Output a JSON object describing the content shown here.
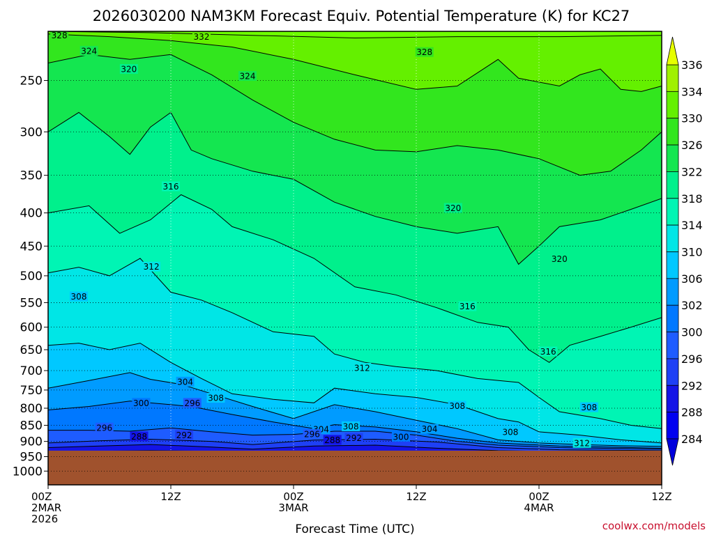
{
  "chart_data": {
    "type": "heatmap",
    "title": "2026030200 NAM3KM Forecast Equiv. Potential Temperature (K) for KC27",
    "xlabel": "Forecast Time (UTC)",
    "ylabel": "",
    "credit": "coolwx.com/models",
    "y_axis": {
      "log": true,
      "range": [
        210,
        1050
      ],
      "ticks": [
        250,
        300,
        350,
        400,
        450,
        500,
        550,
        600,
        650,
        700,
        750,
        800,
        850,
        900,
        950,
        1000
      ]
    },
    "x_axis": {
      "range_hours": [
        0,
        60
      ],
      "ticks": [
        {
          "hour": 0,
          "lines": [
            "00Z",
            "2MAR",
            "2026"
          ]
        },
        {
          "hour": 12,
          "lines": [
            "12Z"
          ]
        },
        {
          "hour": 24,
          "lines": [
            "00Z",
            "3MAR"
          ]
        },
        {
          "hour": 36,
          "lines": [
            "12Z"
          ]
        },
        {
          "hour": 48,
          "lines": [
            "00Z",
            "4MAR"
          ]
        },
        {
          "hour": 60,
          "lines": [
            "12Z"
          ]
        }
      ]
    },
    "colorbar": {
      "levels": [
        284,
        288,
        292,
        296,
        300,
        302,
        306,
        310,
        314,
        318,
        322,
        326,
        330,
        334,
        336
      ],
      "colors": [
        "#0000f0",
        "#1414e6",
        "#1e40f5",
        "#1e5cff",
        "#0078ff",
        "#009bff",
        "#00c8ff",
        "#00e6e6",
        "#00f5b4",
        "#00f08c",
        "#14e650",
        "#32e61e",
        "#64f000",
        "#a0f000",
        "#d2f500"
      ],
      "end_colors": {
        "low": "#0000dc",
        "high": "#e6ff00"
      }
    },
    "ground": {
      "surface_pressure_hpa": 930,
      "color": "#a0522d"
    },
    "series": [
      {
        "level": 284,
        "points": [
          [
            0,
            934
          ],
          [
            10,
            930
          ],
          [
            16,
            932
          ],
          [
            20,
            934
          ],
          [
            26,
            934
          ],
          [
            32,
            934
          ],
          [
            38,
            934
          ],
          [
            44,
            935
          ],
          [
            50,
            936
          ],
          [
            60,
            936
          ]
        ]
      },
      {
        "level": 288,
        "points": [
          [
            0,
            920
          ],
          [
            5,
            915
          ],
          [
            10,
            910
          ],
          [
            16,
            918
          ],
          [
            20,
            925
          ],
          [
            26,
            915
          ],
          [
            32,
            912
          ],
          [
            38,
            922
          ],
          [
            44,
            930
          ],
          [
            50,
            933
          ],
          [
            60,
            934
          ]
        ]
      },
      {
        "level": 292,
        "points": [
          [
            0,
            905
          ],
          [
            5,
            898
          ],
          [
            10,
            893
          ],
          [
            16,
            900
          ],
          [
            20,
            910
          ],
          [
            26,
            896
          ],
          [
            32,
            893
          ],
          [
            38,
            902
          ],
          [
            44,
            920
          ],
          [
            50,
            927
          ],
          [
            60,
            930
          ]
        ]
      },
      {
        "level": 296,
        "points": [
          [
            0,
            865
          ],
          [
            4,
            865
          ],
          [
            8,
            868
          ],
          [
            12,
            858
          ],
          [
            16,
            870
          ],
          [
            20,
            880
          ],
          [
            24,
            878
          ],
          [
            28,
            868
          ],
          [
            32,
            868
          ],
          [
            36,
            880
          ],
          [
            40,
            900
          ],
          [
            44,
            912
          ],
          [
            50,
            920
          ],
          [
            60,
            925
          ]
        ]
      },
      {
        "level": 300,
        "points": [
          [
            0,
            805
          ],
          [
            4,
            795
          ],
          [
            8,
            780
          ],
          [
            12,
            790
          ],
          [
            14,
            795
          ],
          [
            18,
            818
          ],
          [
            22,
            840
          ],
          [
            26,
            860
          ],
          [
            28,
            848
          ],
          [
            32,
            855
          ],
          [
            36,
            870
          ],
          [
            40,
            890
          ],
          [
            44,
            905
          ],
          [
            50,
            915
          ],
          [
            60,
            922
          ]
        ]
      },
      {
        "level": 304,
        "points": [
          [
            0,
            745
          ],
          [
            4,
            725
          ],
          [
            8,
            705
          ],
          [
            10,
            722
          ],
          [
            13,
            735
          ],
          [
            16,
            760
          ],
          [
            20,
            795
          ],
          [
            24,
            830
          ],
          [
            28,
            790
          ],
          [
            32,
            810
          ],
          [
            36,
            835
          ],
          [
            40,
            860
          ],
          [
            44,
            895
          ],
          [
            48,
            905
          ],
          [
            52,
            910
          ],
          [
            56,
            914
          ],
          [
            60,
            916
          ]
        ]
      },
      {
        "level": 308,
        "points": [
          [
            0,
            640
          ],
          [
            3,
            635
          ],
          [
            6,
            650
          ],
          [
            9,
            635
          ],
          [
            12,
            680
          ],
          [
            15,
            720
          ],
          [
            18,
            760
          ],
          [
            22,
            775
          ],
          [
            26,
            785
          ],
          [
            28,
            745
          ],
          [
            32,
            760
          ],
          [
            36,
            770
          ],
          [
            40,
            790
          ],
          [
            44,
            830
          ],
          [
            46,
            840
          ],
          [
            48,
            870
          ],
          [
            52,
            880
          ],
          [
            56,
            895
          ],
          [
            60,
            905
          ]
        ]
      },
      {
        "level": 312,
        "points": [
          [
            0,
            495
          ],
          [
            3,
            485
          ],
          [
            6,
            500
          ],
          [
            9,
            470
          ],
          [
            12,
            530
          ],
          [
            15,
            545
          ],
          [
            18,
            570
          ],
          [
            22,
            610
          ],
          [
            26,
            620
          ],
          [
            28,
            660
          ],
          [
            31,
            680
          ],
          [
            34,
            690
          ],
          [
            38,
            700
          ],
          [
            42,
            720
          ],
          [
            46,
            730
          ],
          [
            48,
            770
          ],
          [
            50,
            810
          ],
          [
            54,
            830
          ],
          [
            57,
            850
          ],
          [
            60,
            860
          ]
        ]
      },
      {
        "level": 316,
        "points": [
          [
            0,
            400
          ],
          [
            4,
            390
          ],
          [
            7,
            430
          ],
          [
            10,
            410
          ],
          [
            13,
            375
          ],
          [
            16,
            395
          ],
          [
            18,
            420
          ],
          [
            22,
            440
          ],
          [
            26,
            470
          ],
          [
            30,
            520
          ],
          [
            34,
            535
          ],
          [
            38,
            560
          ],
          [
            42,
            590
          ],
          [
            45,
            600
          ],
          [
            47,
            650
          ],
          [
            49,
            680
          ],
          [
            51,
            640
          ],
          [
            54,
            620
          ],
          [
            57,
            600
          ],
          [
            60,
            580
          ]
        ]
      },
      {
        "level": 320,
        "points": [
          [
            0,
            300
          ],
          [
            3,
            280
          ],
          [
            6,
            305
          ],
          [
            8,
            325
          ],
          [
            10,
            295
          ],
          [
            12,
            280
          ],
          [
            14,
            320
          ],
          [
            16,
            330
          ],
          [
            20,
            345
          ],
          [
            24,
            355
          ],
          [
            28,
            385
          ],
          [
            32,
            405
          ],
          [
            36,
            420
          ],
          [
            40,
            430
          ],
          [
            44,
            420
          ],
          [
            46,
            480
          ],
          [
            48,
            450
          ],
          [
            50,
            420
          ],
          [
            54,
            410
          ],
          [
            57,
            395
          ],
          [
            60,
            380
          ]
        ]
      },
      {
        "level": 324,
        "points": [
          [
            0,
            235
          ],
          [
            4,
            228
          ],
          [
            8,
            232
          ],
          [
            12,
            228
          ],
          [
            16,
            245
          ],
          [
            20,
            268
          ],
          [
            24,
            290
          ],
          [
            28,
            308
          ],
          [
            32,
            320
          ],
          [
            36,
            322
          ],
          [
            40,
            315
          ],
          [
            44,
            320
          ],
          [
            48,
            330
          ],
          [
            52,
            350
          ],
          [
            55,
            345
          ],
          [
            58,
            320
          ],
          [
            60,
            300
          ]
        ]
      },
      {
        "level": 328,
        "points": [
          [
            0,
            212
          ],
          [
            6,
            214
          ],
          [
            12,
            217
          ],
          [
            18,
            222
          ],
          [
            24,
            232
          ],
          [
            30,
            245
          ],
          [
            36,
            258
          ],
          [
            40,
            255
          ],
          [
            44,
            232
          ],
          [
            46,
            248
          ],
          [
            50,
            255
          ],
          [
            52,
            245
          ],
          [
            54,
            240
          ],
          [
            56,
            258
          ],
          [
            58,
            260
          ],
          [
            60,
            255
          ]
        ]
      },
      {
        "level": 332,
        "points": [
          [
            0,
            210
          ],
          [
            10,
            211
          ],
          [
            20,
            213
          ],
          [
            30,
            215
          ],
          [
            40,
            214
          ],
          [
            50,
            214
          ],
          [
            60,
            213
          ]
        ]
      }
    ],
    "labels": [
      {
        "text": "328",
        "hour": 1.1,
        "p": 213
      },
      {
        "text": "332",
        "hour": 15.0,
        "p": 214
      },
      {
        "text": "324",
        "hour": 4.0,
        "p": 225
      },
      {
        "text": "328",
        "hour": 36.8,
        "p": 226
      },
      {
        "text": "320",
        "hour": 7.9,
        "p": 240
      },
      {
        "text": "324",
        "hour": 19.5,
        "p": 246
      },
      {
        "text": "316",
        "hour": 12.0,
        "p": 364
      },
      {
        "text": "320",
        "hour": 39.6,
        "p": 393
      },
      {
        "text": "320",
        "hour": 50.0,
        "p": 471
      },
      {
        "text": "312",
        "hour": 10.1,
        "p": 484
      },
      {
        "text": "308",
        "hour": 3.0,
        "p": 538
      },
      {
        "text": "316",
        "hour": 41.0,
        "p": 557
      },
      {
        "text": "316",
        "hour": 48.9,
        "p": 654
      },
      {
        "text": "312",
        "hour": 30.7,
        "p": 693
      },
      {
        "text": "304",
        "hour": 13.4,
        "p": 728
      },
      {
        "text": "308",
        "hour": 16.4,
        "p": 771
      },
      {
        "text": "300",
        "hour": 9.1,
        "p": 785
      },
      {
        "text": "296",
        "hour": 14.1,
        "p": 785
      },
      {
        "text": "308",
        "hour": 40.0,
        "p": 793
      },
      {
        "text": "308",
        "hour": 52.9,
        "p": 797
      },
      {
        "text": "296",
        "hour": 5.5,
        "p": 857
      },
      {
        "text": "308",
        "hour": 29.6,
        "p": 853
      },
      {
        "text": "304",
        "hour": 26.7,
        "p": 862
      },
      {
        "text": "304",
        "hour": 37.3,
        "p": 861
      },
      {
        "text": "296",
        "hour": 25.8,
        "p": 877
      },
      {
        "text": "288",
        "hour": 8.9,
        "p": 884
      },
      {
        "text": "292",
        "hour": 13.3,
        "p": 880
      },
      {
        "text": "300",
        "hour": 34.5,
        "p": 885
      },
      {
        "text": "308",
        "hour": 45.2,
        "p": 870
      },
      {
        "text": "288",
        "hour": 27.8,
        "p": 895
      },
      {
        "text": "292",
        "hour": 29.9,
        "p": 889
      },
      {
        "text": "312",
        "hour": 52.2,
        "p": 905
      }
    ]
  }
}
